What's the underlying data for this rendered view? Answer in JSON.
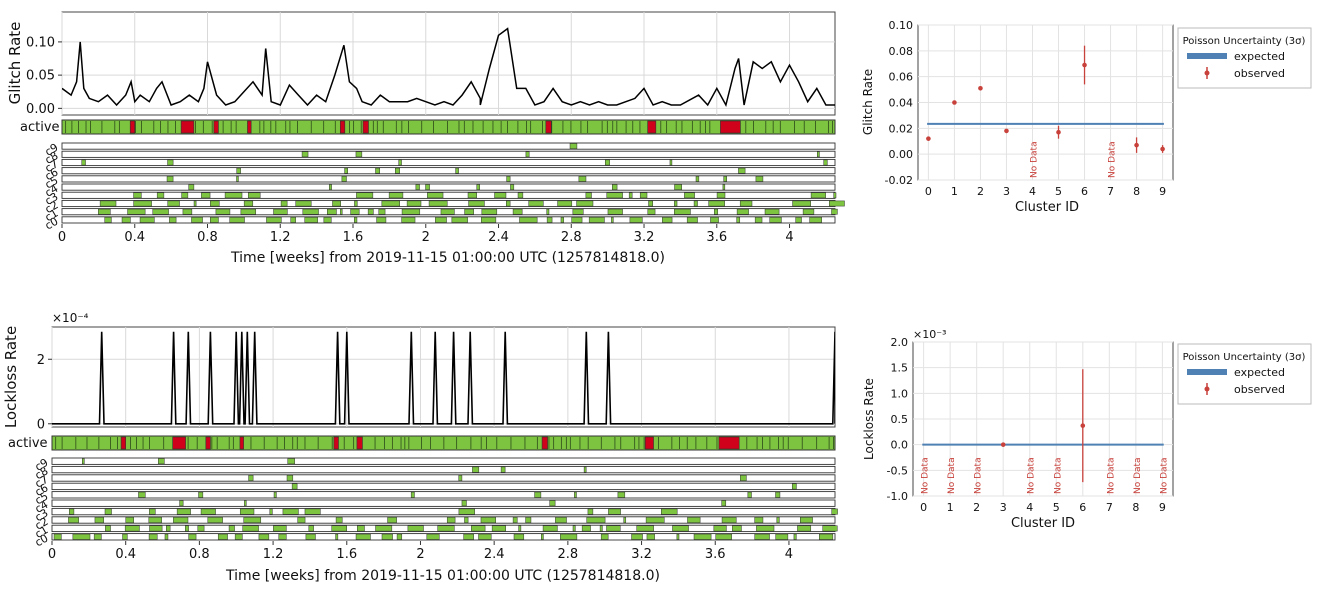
{
  "colors": {
    "active_green": "#7dc540",
    "inactive_red": "#d0021b",
    "segment_outline": "#1a1a1a",
    "rate_line": "#000000",
    "expected_blue": "#4f81b4",
    "observed_red": "#c8413b",
    "grid": "#d9d9d9"
  },
  "timeline_common": {
    "xlabel": "Time [weeks] from 2019-11-15 01:00:00 UTC (1257814818.0)",
    "xticks": [
      "0",
      "0.4",
      "0.8",
      "1.2",
      "1.6",
      "2",
      "2.4",
      "2.8",
      "3.2",
      "3.6",
      "4"
    ],
    "xtick_values": [
      0,
      0.4,
      0.8,
      1.2,
      1.6,
      2.0,
      2.4,
      2.8,
      3.2,
      3.6,
      4.0
    ],
    "xlim": [
      0,
      4.25
    ],
    "active_label": "active",
    "cluster_labels": [
      "c9",
      "c8",
      "c7",
      "c6",
      "c5",
      "c4",
      "c3",
      "c2",
      "c1",
      "c0"
    ],
    "inactive_segments": [
      [
        0.375,
        0.4
      ],
      [
        0.655,
        0.725
      ],
      [
        0.835,
        0.86
      ],
      [
        1.02,
        1.04
      ],
      [
        1.53,
        1.555
      ],
      [
        1.655,
        1.685
      ],
      [
        2.66,
        2.69
      ],
      [
        3.22,
        3.265
      ],
      [
        3.62,
        3.73
      ]
    ],
    "legend_expected": "expected",
    "legend_observed": "observed",
    "legend_title": "Poisson Uncertainty (3σ)",
    "no_data": "No Data",
    "cluster_xlabel": "Cluster ID",
    "cluster_xticks": [
      "0",
      "1",
      "2",
      "3",
      "4",
      "5",
      "6",
      "7",
      "8",
      "9"
    ]
  },
  "chart_data": [
    {
      "type": "line",
      "panel": "glitch-timeline",
      "ylabel": "Glitch Rate",
      "ylim": [
        -0.01,
        0.145
      ],
      "yticks": [
        "0.00",
        "0.05",
        "0.10"
      ],
      "ytick_values": [
        0.0,
        0.05,
        0.1
      ],
      "x": [
        0,
        0.05,
        0.08,
        0.1,
        0.12,
        0.15,
        0.2,
        0.25,
        0.3,
        0.35,
        0.38,
        0.4,
        0.43,
        0.48,
        0.52,
        0.55,
        0.6,
        0.65,
        0.7,
        0.75,
        0.78,
        0.8,
        0.85,
        0.9,
        0.95,
        1.0,
        1.05,
        1.1,
        1.12,
        1.15,
        1.2,
        1.25,
        1.3,
        1.35,
        1.4,
        1.45,
        1.5,
        1.55,
        1.58,
        1.62,
        1.65,
        1.7,
        1.75,
        1.8,
        1.85,
        1.9,
        1.95,
        2.0,
        2.05,
        2.1,
        2.15,
        2.2,
        2.25,
        2.3,
        2.3,
        2.35,
        2.4,
        2.45,
        2.5,
        2.55,
        2.6,
        2.65,
        2.7,
        2.75,
        2.8,
        2.85,
        2.9,
        2.95,
        3.0,
        3.05,
        3.1,
        3.15,
        3.2,
        3.25,
        3.3,
        3.35,
        3.4,
        3.5,
        3.55,
        3.6,
        3.65,
        3.7,
        3.72,
        3.75,
        3.8,
        3.85,
        3.9,
        3.95,
        4.0,
        4.05,
        4.1,
        4.15,
        4.2,
        4.25
      ],
      "y": [
        0.03,
        0.02,
        0.04,
        0.1,
        0.03,
        0.015,
        0.01,
        0.02,
        0.005,
        0.02,
        0.04,
        0.01,
        0.02,
        0.01,
        0.03,
        0.04,
        0.005,
        0.01,
        0.02,
        0.01,
        0.03,
        0.07,
        0.02,
        0.005,
        0.01,
        0.025,
        0.04,
        0.02,
        0.09,
        0.01,
        0.005,
        0.035,
        0.02,
        0.005,
        0.02,
        0.01,
        0.05,
        0.095,
        0.04,
        0.03,
        0.01,
        0.005,
        0.02,
        0.01,
        0.01,
        0.01,
        0.015,
        0.01,
        0.005,
        0.01,
        0.005,
        0.02,
        0.04,
        0.015,
        0.005,
        0.06,
        0.11,
        0.12,
        0.03,
        0.03,
        0.005,
        0.01,
        0.03,
        0.01,
        0.005,
        0.01,
        0.005,
        0.01,
        0.005,
        0.005,
        0.01,
        0.015,
        0.03,
        0.005,
        0.01,
        0.005,
        0.005,
        0.02,
        0.005,
        0.03,
        0.005,
        0.06,
        0.075,
        0.005,
        0.07,
        0.06,
        0.07,
        0.04,
        0.065,
        0.04,
        0.01,
        0.03,
        0.005,
        0.005
      ]
    },
    {
      "type": "scatter",
      "panel": "glitch-clusters",
      "xlabel": "Cluster ID",
      "ylabel": "Glitch Rate",
      "xlim": [
        -0.4,
        9.4
      ],
      "ylim": [
        -0.02,
        0.1
      ],
      "yticks": [
        "-0.02",
        "0.00",
        "0.02",
        "0.04",
        "0.06",
        "0.08",
        "0.10"
      ],
      "ytick_values": [
        -0.02,
        0.0,
        0.02,
        0.04,
        0.06,
        0.08,
        0.1
      ],
      "expected": 0.0235,
      "points": [
        {
          "x": 0,
          "y": 0.012,
          "err": 0.001
        },
        {
          "x": 1,
          "y": 0.04,
          "err": 0.001
        },
        {
          "x": 2,
          "y": 0.051,
          "err": 0.001
        },
        {
          "x": 3,
          "y": 0.018,
          "err": 0.001
        },
        {
          "x": 5,
          "y": 0.017,
          "err": 0.005
        },
        {
          "x": 6,
          "y": 0.069,
          "err": 0.015
        },
        {
          "x": 8,
          "y": 0.007,
          "err": 0.006
        },
        {
          "x": 9,
          "y": 0.004,
          "err": 0.003
        }
      ],
      "no_data_clusters": [
        4,
        7
      ]
    },
    {
      "type": "line",
      "panel": "lockloss-timeline",
      "ylabel": "Lockloss Rate",
      "multiplier": "×10⁻⁴",
      "ylim": [
        -0.1,
        3.0
      ],
      "yticks": [
        "0",
        "2"
      ],
      "ytick_values": [
        0,
        2
      ],
      "peak_value": 2.85,
      "peak_times": [
        0.27,
        0.66,
        0.74,
        0.86,
        1.0,
        1.03,
        1.06,
        1.1,
        1.55,
        1.6,
        1.95,
        2.08,
        2.18,
        2.27,
        2.46,
        2.9,
        3.02,
        4.25
      ]
    },
    {
      "type": "scatter",
      "panel": "lockloss-clusters",
      "xlabel": "Cluster ID",
      "ylabel": "Lockloss Rate",
      "multiplier": "×10⁻³",
      "xlim": [
        -0.4,
        9.4
      ],
      "ylim": [
        -1.0,
        2.0
      ],
      "yticks": [
        "-1.0",
        "-0.5",
        "0.0",
        "0.5",
        "1.0",
        "1.5",
        "2.0"
      ],
      "ytick_values": [
        -1.0,
        -0.5,
        0.0,
        0.5,
        1.0,
        1.5,
        2.0
      ],
      "expected": 0.0,
      "points": [
        {
          "x": 3,
          "y": 0.0,
          "err": 0.01
        },
        {
          "x": 6,
          "y": 0.37,
          "err": 1.1
        }
      ],
      "no_data_clusters": [
        0,
        1,
        2,
        4,
        5,
        7,
        8,
        9
      ]
    }
  ]
}
